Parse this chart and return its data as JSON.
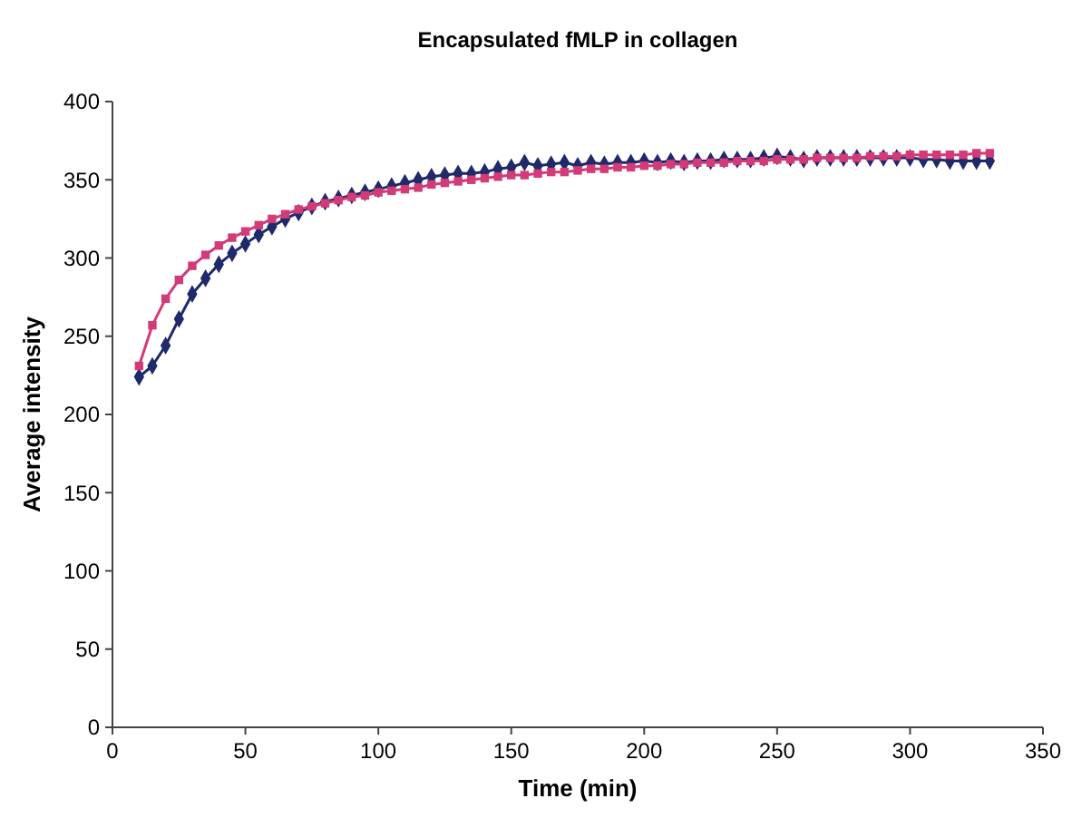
{
  "chart_data": {
    "type": "line",
    "title": "Encapsulated fMLP in collagen",
    "xlabel": "Time (min)",
    "ylabel": "Average intensity",
    "x": [
      10,
      15,
      20,
      25,
      30,
      35,
      40,
      45,
      50,
      55,
      60,
      65,
      70,
      75,
      80,
      85,
      90,
      95,
      100,
      105,
      110,
      115,
      120,
      125,
      130,
      135,
      140,
      145,
      150,
      155,
      160,
      165,
      170,
      175,
      180,
      185,
      190,
      195,
      200,
      205,
      210,
      215,
      220,
      225,
      230,
      235,
      240,
      245,
      250,
      255,
      260,
      265,
      270,
      275,
      280,
      285,
      290,
      295,
      300,
      305,
      310,
      315,
      320,
      325,
      330
    ],
    "series": [
      {
        "color": "#1f2a6b",
        "marker": "diamond",
        "values": [
          224,
          231,
          244,
          261,
          277,
          287,
          296,
          303,
          309,
          315,
          320,
          325,
          329,
          333,
          336,
          338,
          340,
          342,
          344,
          346,
          348,
          350,
          352,
          353,
          354,
          354,
          355,
          357,
          358,
          361,
          359,
          360,
          361,
          359,
          361,
          360,
          361,
          361,
          362,
          361,
          362,
          361,
          362,
          362,
          363,
          363,
          363,
          364,
          365,
          364,
          363,
          364,
          364,
          364,
          364,
          364,
          364,
          364,
          364,
          363,
          363,
          362,
          362,
          362,
          362
        ]
      },
      {
        "color": "#d23a78",
        "marker": "square",
        "values": [
          231,
          257,
          274,
          286,
          295,
          302,
          308,
          313,
          317,
          321,
          325,
          328,
          331,
          333,
          335,
          337,
          339,
          340,
          342,
          343,
          344,
          345,
          347,
          348,
          349,
          350,
          351,
          352,
          353,
          353,
          354,
          355,
          355,
          356,
          357,
          357,
          358,
          358,
          359,
          359,
          360,
          360,
          361,
          361,
          361,
          362,
          362,
          362,
          363,
          363,
          363,
          364,
          364,
          364,
          364,
          365,
          365,
          365,
          366,
          366,
          366,
          366,
          366,
          367,
          367
        ]
      }
    ],
    "xlim": [
      0,
      350
    ],
    "xticks": [
      0,
      50,
      100,
      150,
      200,
      250,
      300,
      350
    ],
    "ylim": [
      0,
      400
    ],
    "yticks": [
      0,
      50,
      100,
      150,
      200,
      250,
      300,
      350,
      400
    ],
    "grid": false
  }
}
